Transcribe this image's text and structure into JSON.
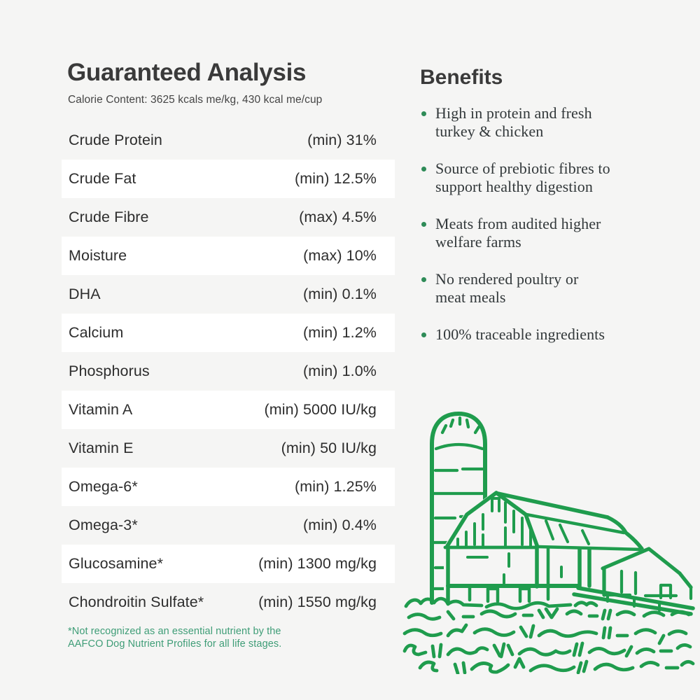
{
  "colors": {
    "background": "#f5f5f4",
    "rowWhite": "#ffffff",
    "ink": "#3a3a3a",
    "green": "#1f9c4d",
    "footnoteGreen": "#3f9d77",
    "bulletGreen": "#2e8b57"
  },
  "analysis": {
    "title": "Guaranteed Analysis",
    "subtitle": "Calorie Content: 3625 kcals me/kg, 430 kcal me/cup",
    "rows": [
      {
        "label": "Crude Protein",
        "value": "(min) 31%"
      },
      {
        "label": "Crude Fat",
        "value": "(min) 12.5%"
      },
      {
        "label": "Crude Fibre",
        "value": "(max) 4.5%"
      },
      {
        "label": "Moisture",
        "value": "(max) 10%"
      },
      {
        "label": "DHA",
        "value": "(min) 0.1%"
      },
      {
        "label": "Calcium",
        "value": "(min) 1.2%"
      },
      {
        "label": "Phosphorus",
        "value": "(min) 1.0%"
      },
      {
        "label": "Vitamin A",
        "value": "(min) 5000 IU/kg"
      },
      {
        "label": "Vitamin E",
        "value": "(min) 50 IU/kg"
      },
      {
        "label": "Omega-6*",
        "value": "(min) 1.25%"
      },
      {
        "label": "Omega-3*",
        "value": "(min) 0.4%"
      },
      {
        "label": "Glucosamine*",
        "value": "(min) 1300 mg/kg"
      },
      {
        "label": "Chondroitin Sulfate*",
        "value": "(min) 1550 mg/kg"
      }
    ],
    "footnote": [
      "*Not recognized as an essential nutrient by the",
      "AAFCO Dog Nutrient Profiles for all life stages."
    ]
  },
  "benefits": {
    "title": "Benefits",
    "items": [
      [
        "High in protein and fresh",
        "turkey & chicken"
      ],
      [
        "Source of prebiotic fibres to",
        "support healthy digestion"
      ],
      [
        "Meats from audited higher",
        "welfare farms"
      ],
      [
        "No rendered poultry or",
        "meat meals"
      ],
      [
        "100% traceable ingredients"
      ]
    ]
  },
  "illustration": {
    "name": "farm-barn-silo-line-art"
  }
}
